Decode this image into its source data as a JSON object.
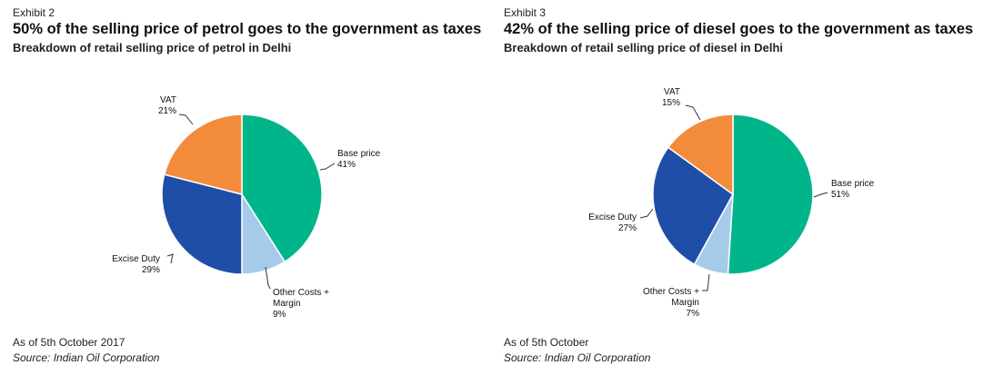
{
  "chart_data": [
    {
      "type": "pie",
      "exhibit": "Exhibit 2",
      "title": "50% of the selling price of petrol goes to the government as taxes",
      "subtitle": "Breakdown of retail selling price of petrol in Delhi",
      "slices": [
        {
          "label": "Base price",
          "value": 41,
          "pct_label": "41%",
          "color": "#00b58a"
        },
        {
          "label": "Other Costs + Margin",
          "value": 9,
          "pct_label": "9%",
          "color": "#a6cbea"
        },
        {
          "label": "Excise Duty",
          "value": 29,
          "pct_label": "29%",
          "color": "#1f4ea8"
        },
        {
          "label": "VAT",
          "value": 21,
          "pct_label": "21%",
          "color": "#f28c3c"
        }
      ],
      "note": "As of 5th October 2017",
      "source": "Source: Indian Oil Corporation"
    },
    {
      "type": "pie",
      "exhibit": "Exhibit 3",
      "title": "42% of the selling price of diesel goes to the government as taxes",
      "subtitle": "Breakdown of retail selling price of diesel in Delhi",
      "slices": [
        {
          "label": "Base price",
          "value": 51,
          "pct_label": "51%",
          "color": "#00b58a"
        },
        {
          "label": "Other Costs + Margin",
          "value": 7,
          "pct_label": "7%",
          "color": "#a6cbea"
        },
        {
          "label": "Excise Duty",
          "value": 27,
          "pct_label": "27%",
          "color": "#1f4ea8"
        },
        {
          "label": "VAT",
          "value": 15,
          "pct_label": "15%",
          "color": "#f28c3c"
        }
      ],
      "note": "As of 5th October",
      "source": "Source: Indian Oil Corporation"
    }
  ]
}
